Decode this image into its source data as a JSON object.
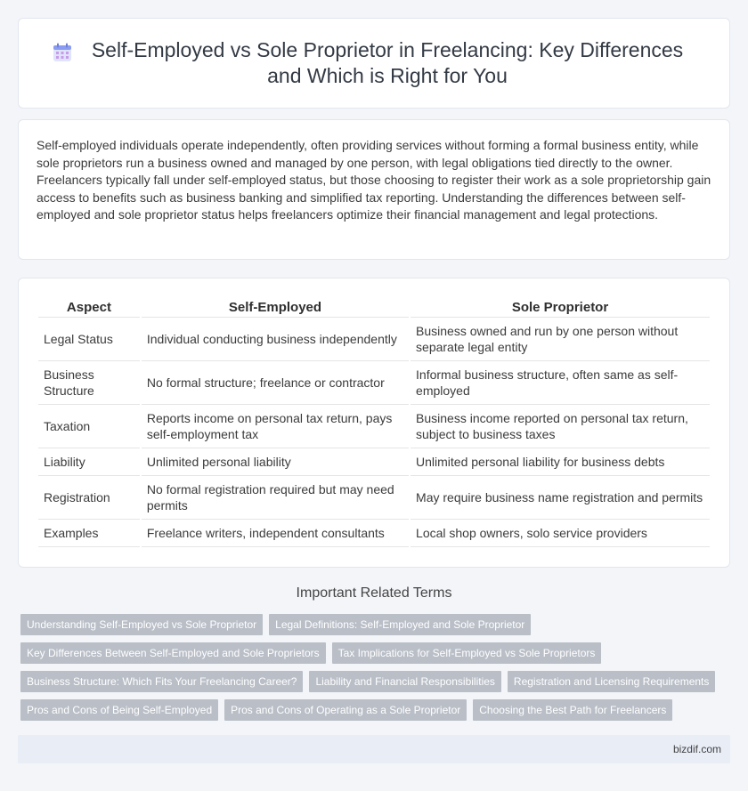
{
  "header": {
    "title": "Self-Employed vs Sole Proprietor in Freelancing: Key Differences and Which is Right for You",
    "icon": "calendar-icon"
  },
  "intro": {
    "text": "Self-employed individuals operate independently, often providing services without forming a formal business entity, while sole proprietors run a business owned and managed by one person, with legal obligations tied directly to the owner. Freelancers typically fall under self-employed status, but those choosing to register their work as a sole proprietorship gain access to benefits such as business banking and simplified tax reporting. Understanding the differences between self-employed and sole proprietor status helps freelancers optimize their financial management and legal protections."
  },
  "table": {
    "headers": [
      "Aspect",
      "Self-Employed",
      "Sole Proprietor"
    ],
    "rows": [
      [
        "Legal Status",
        "Individual conducting business independently",
        "Business owned and run by one person without separate legal entity"
      ],
      [
        "Business Structure",
        "No formal structure; freelance or contractor",
        "Informal business structure, often same as self-employed"
      ],
      [
        "Taxation",
        "Reports income on personal tax return, pays self-employment tax",
        "Business income reported on personal tax return, subject to business taxes"
      ],
      [
        "Liability",
        "Unlimited personal liability",
        "Unlimited personal liability for business debts"
      ],
      [
        "Registration",
        "No formal registration required but may need permits",
        "May require business name registration and permits"
      ],
      [
        "Examples",
        "Freelance writers, independent consultants",
        "Local shop owners, solo service providers"
      ]
    ]
  },
  "related": {
    "title": "Important Related Terms",
    "tags": [
      "Understanding Self-Employed vs Sole Proprietor",
      "Legal Definitions: Self-Employed and Sole Proprietor",
      "Key Differences Between Self-Employed and Sole Proprietors",
      "Tax Implications for Self-Employed vs Sole Proprietors",
      "Business Structure: Which Fits Your Freelancing Career?",
      "Liability and Financial Responsibilities",
      "Registration and Licensing Requirements",
      "Pros and Cons of Being Self-Employed",
      "Pros and Cons of Operating as a Sole Proprietor",
      "Choosing the Best Path for Freelancers"
    ]
  },
  "footer": {
    "site": "bizdif.com"
  },
  "colors": {
    "tag_bg": "#b9bec7",
    "footer_bg": "#e8edf6",
    "page_bg": "#f3f5f9",
    "icon_accent": "#7b8ff0"
  }
}
